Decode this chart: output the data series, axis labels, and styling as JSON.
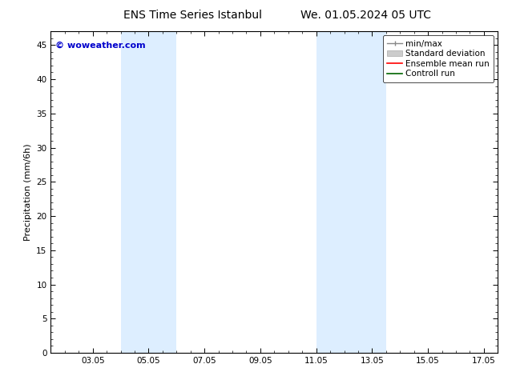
{
  "title_left": "ENS Time Series Istanbul",
  "title_right": "We. 01.05.2024 05 UTC",
  "ylabel": "Precipitation (mm/6h)",
  "watermark": "© woweather.com",
  "watermark_color": "#0000cc",
  "xlim_start": 1.5,
  "xlim_end": 17.5,
  "ylim_bottom": 0,
  "ylim_top": 47,
  "yticks": [
    0,
    5,
    10,
    15,
    20,
    25,
    30,
    35,
    40,
    45
  ],
  "xtick_labels": [
    "03.05",
    "05.05",
    "07.05",
    "09.05",
    "11.05",
    "13.05",
    "15.05",
    "17.05"
  ],
  "xtick_positions": [
    3,
    5,
    7,
    9,
    11,
    13,
    15,
    17
  ],
  "shaded_bands": [
    {
      "xmin": 4.0,
      "xmax": 6.0
    },
    {
      "xmin": 11.0,
      "xmax": 12.0
    },
    {
      "xmin": 12.0,
      "xmax": 13.5
    }
  ],
  "shade_color": "#ddeeff",
  "bg_color": "#ffffff",
  "spine_color": "#000000",
  "tick_color": "#000000",
  "font_size_title": 10,
  "font_size_axis": 8,
  "font_size_tick": 7.5,
  "font_size_legend": 7.5,
  "font_size_watermark": 8
}
